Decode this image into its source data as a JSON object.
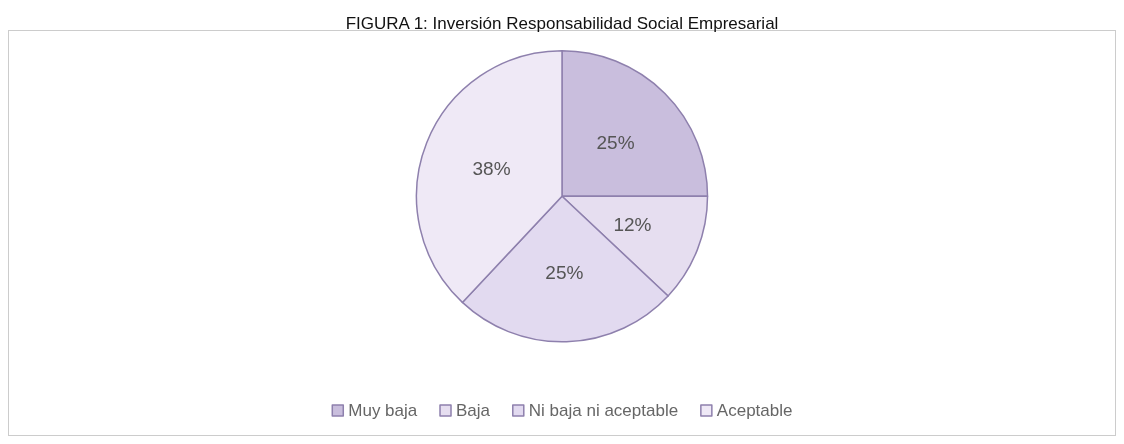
{
  "chart_data": {
    "type": "pie",
    "title": "FIGURA 1: Inversión Responsabilidad Social Empresarial",
    "categories": [
      "Muy baja",
      "Baja",
      "Ni baja ni aceptable",
      "Aceptable"
    ],
    "values": [
      25,
      12,
      25,
      38
    ],
    "colors": [
      "#c9bedd",
      "#e6def0",
      "#e2daf0",
      "#efe9f6"
    ],
    "value_labels": [
      "25%",
      "12%",
      "25%",
      "38%"
    ],
    "legend": "bottom"
  }
}
